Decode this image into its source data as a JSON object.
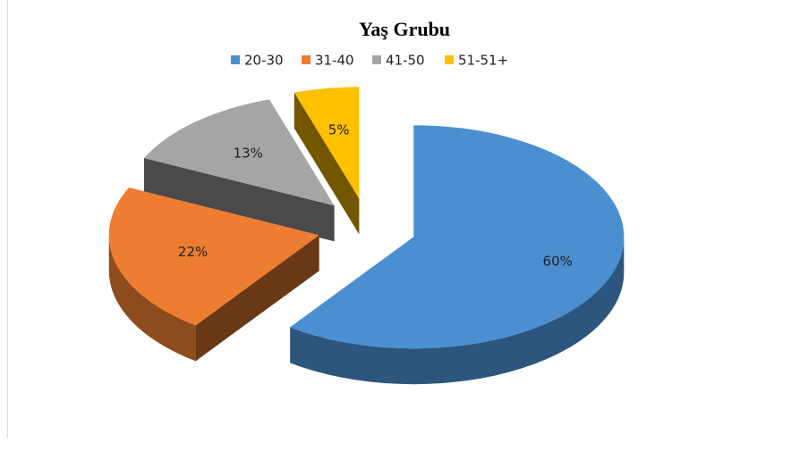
{
  "chart_data": {
    "type": "pie",
    "title": "Yaş Grubu",
    "categories": [
      "20-30",
      "31-40",
      "41-50",
      "51-51+"
    ],
    "values": [
      60,
      22,
      13,
      5
    ],
    "value_labels": [
      "60%",
      "22%",
      "13%",
      "5%"
    ],
    "colors": [
      "#4a90d0",
      "#ed7d31",
      "#a5a5a5",
      "#ffc000"
    ],
    "legend": "top"
  }
}
